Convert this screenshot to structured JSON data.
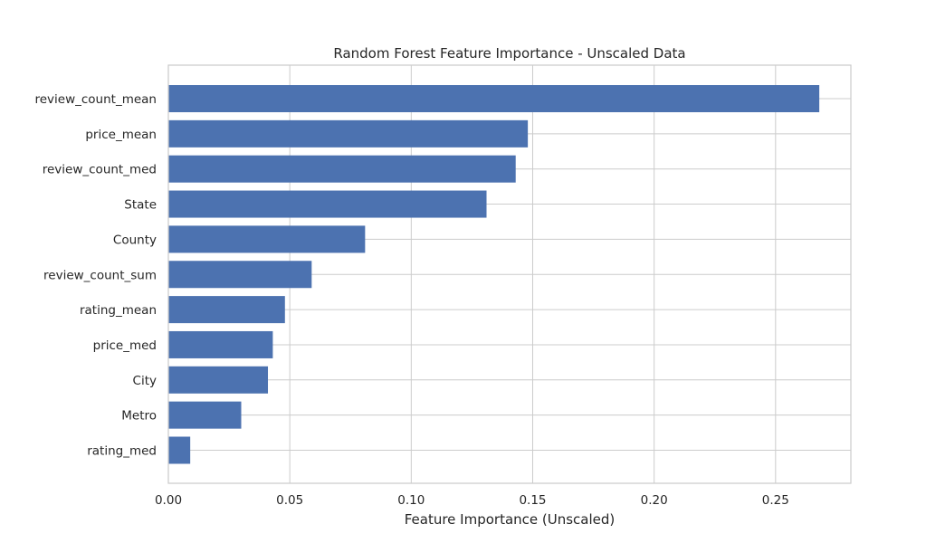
{
  "chart_data": {
    "type": "bar",
    "orientation": "horizontal",
    "title": "Random Forest Feature Importance - Unscaled Data",
    "xlabel": "Feature Importance (Unscaled)",
    "ylabel": "",
    "xlim": [
      0,
      0.281
    ],
    "xticks": [
      0.0,
      0.05,
      0.1,
      0.15,
      0.2,
      0.25
    ],
    "xtick_labels": [
      "0.00",
      "0.05",
      "0.10",
      "0.15",
      "0.20",
      "0.25"
    ],
    "grid": true,
    "bar_color": "#4c72b0",
    "categories": [
      "review_count_mean",
      "price_mean",
      "review_count_med",
      "State",
      "County",
      "review_count_sum",
      "rating_mean",
      "price_med",
      "City",
      "Metro",
      "rating_med"
    ],
    "values": [
      0.268,
      0.148,
      0.143,
      0.131,
      0.081,
      0.059,
      0.048,
      0.043,
      0.041,
      0.03,
      0.009
    ]
  }
}
